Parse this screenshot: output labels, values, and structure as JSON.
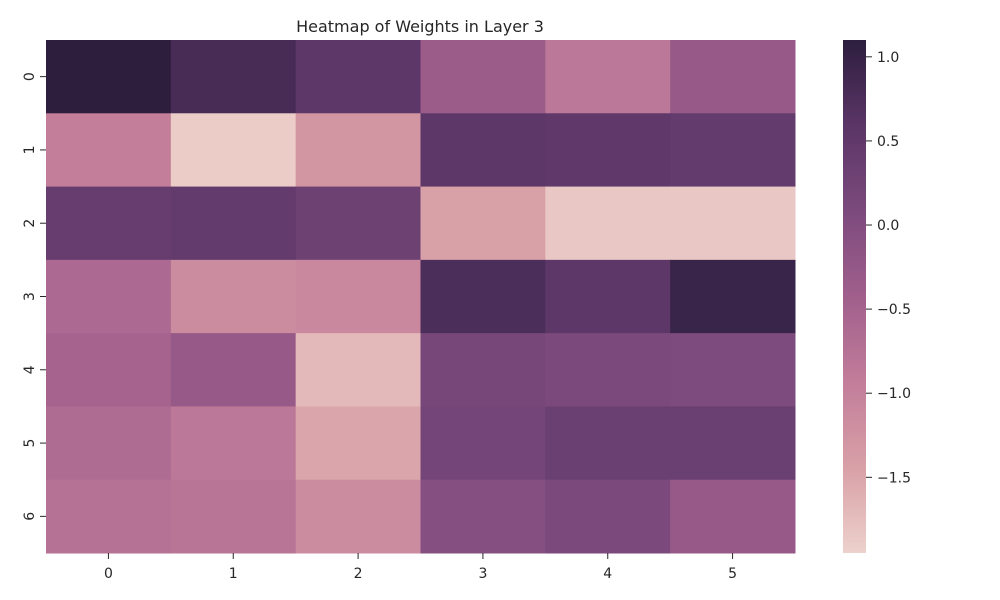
{
  "chart_data": {
    "type": "heatmap",
    "title": "Heatmap of Weights in Layer 3",
    "xlabel": "",
    "ylabel": "",
    "x_categories": [
      "0",
      "1",
      "2",
      "3",
      "4",
      "5"
    ],
    "y_categories": [
      "0",
      "1",
      "2",
      "3",
      "4",
      "5",
      "6"
    ],
    "values": [
      [
        1.1,
        0.8,
        0.55,
        -0.35,
        -0.85,
        -0.3
      ],
      [
        -0.95,
        -1.9,
        -1.3,
        0.55,
        0.5,
        0.45
      ],
      [
        0.4,
        0.45,
        0.3,
        -1.45,
        -1.85,
        -1.85
      ],
      [
        -0.6,
        -1.15,
        -1.1,
        0.75,
        0.55,
        0.95
      ],
      [
        -0.5,
        -0.3,
        -1.7,
        0.15,
        0.1,
        0.05
      ],
      [
        -0.65,
        -0.85,
        -1.5,
        0.2,
        0.35,
        0.35
      ],
      [
        -0.75,
        -0.8,
        -1.15,
        -0.05,
        0.1,
        -0.3
      ]
    ],
    "colorbar": {
      "min": -1.95,
      "max": 1.1,
      "ticks": [
        1.0,
        0.5,
        0.0,
        -0.5,
        -1.0,
        -1.5
      ],
      "tick_labels": [
        "1.0",
        "0.5",
        "0.0",
        "−0.5",
        "−1.0",
        "−1.5"
      ]
    },
    "colormap": [
      "#edd1cb",
      "#d8a0a7",
      "#c27d9a",
      "#a05f8c",
      "#7c4a7d",
      "#5a3566",
      "#2d1e3e"
    ],
    "grid": false,
    "legend": "colorbar-right"
  }
}
